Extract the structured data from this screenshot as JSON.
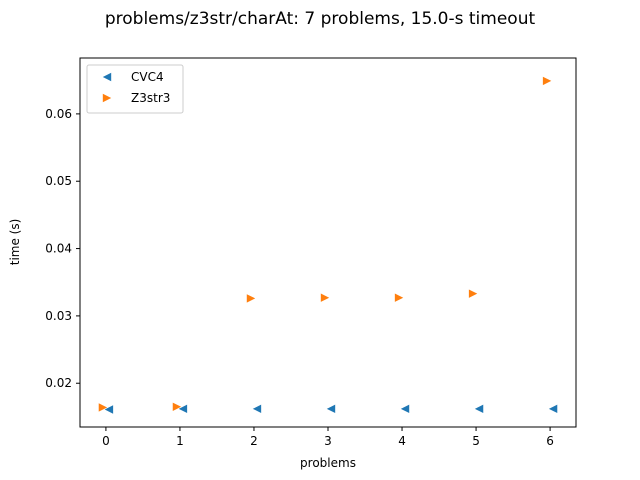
{
  "chart_data": {
    "type": "scatter",
    "title": "problems/z3str/charAt: 7 problems, 15.0-s timeout",
    "xlabel": "problems",
    "ylabel": "time (s)",
    "xlim": [
      -0.35,
      6.35
    ],
    "ylim": [
      0.0135,
      0.0683
    ],
    "xticks": [
      0,
      1,
      2,
      3,
      4,
      5,
      6
    ],
    "xtick_labels": [
      "0",
      "1",
      "2",
      "3",
      "4",
      "5",
      "6"
    ],
    "yticks": [
      0.02,
      0.03,
      0.04,
      0.05,
      0.06
    ],
    "ytick_labels": [
      "0.02",
      "0.03",
      "0.04",
      "0.05",
      "0.06"
    ],
    "grid": false,
    "legend_position": "top-left",
    "series": [
      {
        "name": "CVC4",
        "marker": "triangle-left",
        "color": "#1f77b4",
        "x": [
          0,
          1,
          2,
          3,
          4,
          5,
          6
        ],
        "y": [
          0.0161,
          0.0162,
          0.0162,
          0.0162,
          0.0162,
          0.0162,
          0.0162
        ]
      },
      {
        "name": "Z3str3",
        "marker": "triangle-right",
        "color": "#ff7f0e",
        "x": [
          0,
          1,
          2,
          3,
          4,
          5,
          6
        ],
        "y": [
          0.0164,
          0.0165,
          0.0326,
          0.0327,
          0.0327,
          0.0333,
          0.0649
        ]
      }
    ]
  }
}
